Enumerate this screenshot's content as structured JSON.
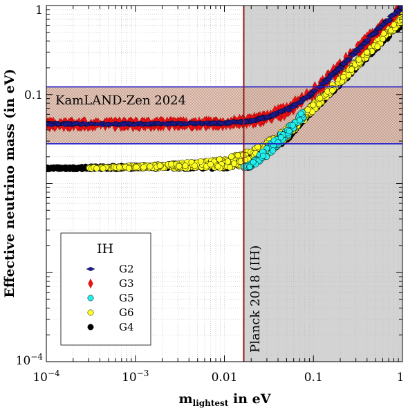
{
  "chart_data": {
    "type": "scatter",
    "xlabel_main": "m",
    "xlabel_sub": "lightest",
    "xlabel_rest": " in eV",
    "ylabel": "Effective neutrino mass (in eV)",
    "xscale": "log",
    "yscale": "log",
    "xlim": [
      0.0001,
      1
    ],
    "ylim": [
      0.0001,
      1
    ],
    "grid": true,
    "xticks": [
      {
        "value": 0.0001,
        "base": "10",
        "exp": "−4"
      },
      {
        "value": 0.001,
        "base": "10",
        "exp": "−3"
      },
      {
        "value": 0.01,
        "label": "0.01"
      },
      {
        "value": 0.1,
        "label": "0.1"
      },
      {
        "value": 1,
        "label": "1"
      }
    ],
    "yticks": [
      {
        "value": 0.0001,
        "base": "10",
        "exp": "−4"
      },
      {
        "value": 0.1,
        "label": "0.1"
      },
      {
        "value": 1,
        "label": "1"
      }
    ],
    "kamland_band": {
      "label": "KamLAND-Zen 2024",
      "ymin": 0.028,
      "ymax": 0.122,
      "color": "#1a1acc"
    },
    "planck_limit": {
      "label": "Planck 2018 (IH)",
      "x": 0.0165,
      "color": "#8b1a1a"
    },
    "legend": {
      "title": "IH",
      "entries": [
        {
          "name": "G2",
          "color": "#1a1a8c",
          "marker": "diamond-h"
        },
        {
          "name": "G3",
          "color": "#ee1111",
          "marker": "diamond-v"
        },
        {
          "name": "G5",
          "color": "#22eeee",
          "marker": "circle"
        },
        {
          "name": "G6",
          "color": "#ffff22",
          "marker": "circle"
        },
        {
          "name": "G4",
          "color": "#000000",
          "marker": "circle"
        }
      ]
    },
    "series": [
      {
        "name": "G4",
        "color": "#000000",
        "min_x": [
          0.0001,
          0.001,
          0.01,
          0.02,
          0.05,
          0.1,
          0.3,
          0.6,
          1.0
        ],
        "min_y": [
          0.0145,
          0.0146,
          0.0147,
          0.016,
          0.03,
          0.07,
          0.22,
          0.43,
          0.72
        ],
        "max_y": [
          0.0152,
          0.016,
          0.018,
          0.021,
          0.034,
          0.065,
          0.19,
          0.38,
          0.6
        ]
      },
      {
        "name": "G6",
        "color": "#ffff22",
        "x": [
          0.0003,
          0.001,
          0.003,
          0.01,
          0.02,
          0.03,
          0.05,
          0.1,
          0.2,
          0.5,
          1.0
        ],
        "min_y": [
          0.0148,
          0.0148,
          0.0148,
          0.0149,
          0.016,
          0.021,
          0.032,
          0.065,
          0.13,
          0.33,
          0.65
        ],
        "max_y": [
          0.0152,
          0.016,
          0.017,
          0.019,
          0.024,
          0.03,
          0.042,
          0.08,
          0.16,
          0.4,
          0.8
        ]
      },
      {
        "name": "G5",
        "color": "#22eeee",
        "x": [
          0.016,
          0.02,
          0.03,
          0.05,
          0.08
        ],
        "min_y": [
          0.0148,
          0.0152,
          0.02,
          0.033,
          0.055
        ],
        "max_y": [
          0.0155,
          0.017,
          0.026,
          0.042,
          0.068
        ]
      },
      {
        "name": "G3",
        "color": "#ee1111",
        "x": [
          0.0001,
          0.001,
          0.01,
          0.02,
          0.03,
          0.05,
          0.1,
          0.2,
          0.5,
          1.0
        ],
        "min_y": [
          0.043,
          0.043,
          0.044,
          0.046,
          0.05,
          0.058,
          0.095,
          0.18,
          0.46,
          0.9
        ],
        "max_y": [
          0.05,
          0.05,
          0.051,
          0.055,
          0.062,
          0.076,
          0.12,
          0.23,
          0.56,
          1.05
        ]
      },
      {
        "name": "G2",
        "color": "#1a1a8c",
        "x": [
          0.0001,
          0.001,
          0.01,
          0.02,
          0.03,
          0.05,
          0.1,
          0.2,
          0.5,
          1.0
        ],
        "min_y": [
          0.0455,
          0.0455,
          0.0465,
          0.049,
          0.054,
          0.064,
          0.102,
          0.195,
          0.49,
          0.95
        ],
        "max_y": [
          0.048,
          0.048,
          0.049,
          0.052,
          0.058,
          0.07,
          0.11,
          0.21,
          0.52,
          1.0
        ]
      }
    ]
  }
}
